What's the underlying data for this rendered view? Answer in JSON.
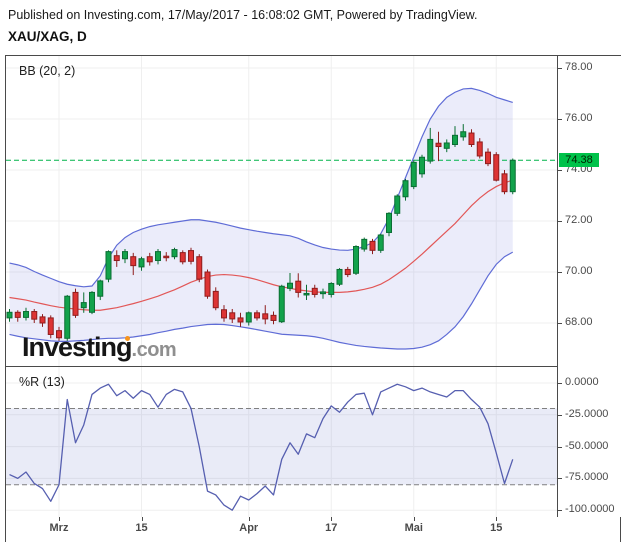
{
  "header": {
    "published": "Published on Investing.com, 17/May/2017 - 16:08:02 GMT, Powered by TradingView.",
    "symbol_line": "XAU/XAG, D"
  },
  "main_pane": {
    "indicator_label": "BB (20, 2)"
  },
  "wr_pane": {
    "indicator_label": "%R (13)"
  },
  "watermark": {
    "brand": "Investing",
    "tld": ".com"
  },
  "colors": {
    "up_fill": "#12a24b",
    "up_border": "#0a6e33",
    "down_fill": "#dd3434",
    "down_border": "#8e1d1d",
    "bb_line": "#5f6cd6",
    "bb_fill": "rgba(98,108,215,0.13)",
    "bb_mid": "#e25757",
    "wr_line": "#565fb0",
    "wr_band_fill": "rgba(101,110,200,0.14)",
    "wr_dash": "#808080",
    "last_line": "#00b44a",
    "badge_bg": "#00c24a",
    "grid": "#efefef"
  },
  "chart_data": {
    "type": "candlestick",
    "title": "XAU/XAG, D",
    "indicators": [
      "BB (20, 2)",
      "%R (13)"
    ],
    "last_price": "74.38",
    "last_price_value": 74.38,
    "price_axis_ticks": [
      {
        "label": "78.00",
        "price": 78
      },
      {
        "label": "76.00",
        "price": 76
      },
      {
        "label": "74.00",
        "price": 74
      },
      {
        "label": "72.00",
        "price": 72
      },
      {
        "label": "70.00",
        "price": 70
      },
      {
        "label": "68.00",
        "price": 68
      }
    ],
    "wr_axis_ticks": [
      {
        "label": "0.0000",
        "value": 0
      },
      {
        "label": "-25.0000",
        "value": -25
      },
      {
        "label": "-50.0000",
        "value": -50
      },
      {
        "label": "-75.0000",
        "value": -75
      },
      {
        "label": "-100.0000",
        "value": -100
      }
    ],
    "time_ticks": [
      {
        "label": "Mrz",
        "i": 6
      },
      {
        "label": "15",
        "i": 16
      },
      {
        "label": "Apr",
        "i": 29
      },
      {
        "label": "17",
        "i": 39
      },
      {
        "label": "Mai",
        "i": 49
      },
      {
        "label": "15",
        "i": 59
      }
    ],
    "wr_band_levels": [
      -20,
      -80
    ],
    "candles": [
      [
        68.2,
        68.55,
        68.05,
        68.42
      ],
      [
        68.42,
        68.5,
        68.05,
        68.22
      ],
      [
        68.22,
        68.6,
        68.1,
        68.45
      ],
      [
        68.45,
        68.55,
        68.0,
        68.15
      ],
      [
        68.24,
        68.35,
        67.85,
        68.0
      ],
      [
        68.2,
        68.3,
        67.4,
        67.55
      ],
      [
        67.7,
        67.85,
        67.3,
        67.42
      ],
      [
        67.4,
        69.1,
        67.3,
        69.05
      ],
      [
        69.2,
        69.35,
        68.2,
        68.3
      ],
      [
        68.6,
        69.2,
        68.4,
        68.8
      ],
      [
        68.42,
        69.25,
        68.35,
        69.2
      ],
      [
        69.05,
        69.7,
        68.9,
        69.65
      ],
      [
        69.72,
        70.85,
        69.6,
        70.8
      ],
      [
        70.64,
        70.85,
        70.2,
        70.45
      ],
      [
        70.52,
        70.9,
        70.35,
        70.8
      ],
      [
        70.6,
        70.75,
        69.88,
        70.25
      ],
      [
        70.2,
        70.6,
        70.05,
        70.52
      ],
      [
        70.6,
        70.75,
        70.25,
        70.4
      ],
      [
        70.45,
        70.9,
        70.3,
        70.8
      ],
      [
        70.62,
        70.78,
        70.42,
        70.56
      ],
      [
        70.6,
        70.95,
        70.5,
        70.88
      ],
      [
        70.76,
        70.85,
        70.3,
        70.4
      ],
      [
        70.84,
        70.95,
        70.3,
        70.42
      ],
      [
        70.6,
        70.7,
        69.6,
        69.72
      ],
      [
        70.0,
        70.1,
        68.95,
        69.05
      ],
      [
        69.24,
        69.4,
        68.5,
        68.6
      ],
      [
        68.52,
        68.7,
        68.05,
        68.2
      ],
      [
        68.4,
        68.55,
        68.0,
        68.16
      ],
      [
        68.2,
        68.4,
        67.85,
        68.04
      ],
      [
        68.04,
        68.45,
        67.9,
        68.4
      ],
      [
        68.4,
        68.5,
        68.1,
        68.2
      ],
      [
        68.36,
        68.7,
        67.95,
        68.16
      ],
      [
        68.3,
        68.45,
        67.95,
        68.1
      ],
      [
        68.05,
        69.5,
        68.0,
        69.44
      ],
      [
        69.36,
        69.96,
        69.25,
        69.56
      ],
      [
        69.64,
        69.95,
        69.0,
        69.2
      ],
      [
        69.1,
        69.5,
        68.9,
        69.16
      ],
      [
        69.36,
        69.5,
        69.0,
        69.12
      ],
      [
        69.15,
        69.35,
        68.95,
        69.22
      ],
      [
        69.12,
        69.6,
        69.0,
        69.55
      ],
      [
        69.52,
        70.15,
        69.45,
        70.1
      ],
      [
        70.1,
        70.2,
        69.8,
        69.9
      ],
      [
        69.95,
        71.05,
        69.88,
        71.0
      ],
      [
        70.9,
        71.35,
        70.8,
        71.28
      ],
      [
        71.2,
        71.3,
        70.7,
        70.85
      ],
      [
        70.85,
        71.5,
        70.75,
        71.45
      ],
      [
        71.55,
        72.35,
        71.4,
        72.3
      ],
      [
        72.3,
        73.05,
        72.2,
        72.98
      ],
      [
        72.95,
        73.65,
        72.8,
        73.58
      ],
      [
        73.35,
        74.4,
        73.25,
        74.3
      ],
      [
        73.85,
        74.6,
        73.7,
        74.5
      ],
      [
        74.35,
        75.65,
        74.25,
        75.2
      ],
      [
        75.05,
        75.5,
        74.35,
        74.92
      ],
      [
        74.85,
        75.2,
        74.7,
        75.06
      ],
      [
        75.0,
        75.72,
        74.9,
        75.36
      ],
      [
        75.3,
        75.8,
        75.15,
        75.5
      ],
      [
        75.45,
        75.6,
        74.9,
        75.0
      ],
      [
        75.1,
        75.25,
        74.45,
        74.55
      ],
      [
        74.7,
        74.85,
        74.15,
        74.25
      ],
      [
        74.6,
        74.7,
        73.55,
        73.6
      ],
      [
        73.85,
        74.0,
        73.05,
        73.15
      ],
      [
        73.15,
        74.45,
        73.05,
        74.38
      ]
    ],
    "bb_upper": [
      70.35,
      70.28,
      70.18,
      70.02,
      69.88,
      69.75,
      69.62,
      69.52,
      69.46,
      69.42,
      69.45,
      69.85,
      70.55,
      71.05,
      71.35,
      71.55,
      71.68,
      71.78,
      71.85,
      71.9,
      71.95,
      72.0,
      72.05,
      72.05,
      72.0,
      71.95,
      71.88,
      71.8,
      71.72,
      71.66,
      71.6,
      71.55,
      71.5,
      71.46,
      71.42,
      71.32,
      71.18,
      71.06,
      70.96,
      70.9,
      70.86,
      70.85,
      70.9,
      71.0,
      71.15,
      71.5,
      72.1,
      72.9,
      73.7,
      74.5,
      75.3,
      76.0,
      76.5,
      76.85,
      77.05,
      77.18,
      77.2,
      77.12,
      77.0,
      76.85,
      76.75,
      76.65
    ],
    "bb_mid": [
      69.0,
      68.95,
      68.9,
      68.82,
      68.75,
      68.68,
      68.62,
      68.58,
      68.55,
      68.52,
      68.5,
      68.5,
      68.55,
      68.6,
      68.68,
      68.76,
      68.85,
      68.95,
      69.05,
      69.18,
      69.3,
      69.45,
      69.6,
      69.72,
      69.82,
      69.88,
      69.9,
      69.88,
      69.84,
      69.78,
      69.7,
      69.6,
      69.5,
      69.42,
      69.36,
      69.3,
      69.26,
      69.22,
      69.2,
      69.2,
      69.2,
      69.22,
      69.26,
      69.32,
      69.4,
      69.52,
      69.7,
      69.92,
      70.15,
      70.42,
      70.7,
      71.0,
      71.3,
      71.6,
      71.9,
      72.25,
      72.6,
      72.9,
      73.15,
      73.35,
      73.5,
      73.6
    ],
    "bb_lower": [
      67.55,
      67.48,
      67.42,
      67.38,
      67.34,
      67.3,
      67.28,
      67.28,
      67.3,
      67.32,
      67.35,
      67.38,
      67.4,
      67.4,
      67.42,
      67.45,
      67.5,
      67.55,
      67.62,
      67.68,
      67.75,
      67.8,
      67.86,
      67.9,
      67.94,
      67.95,
      67.94,
      67.9,
      67.85,
      67.8,
      67.74,
      67.68,
      67.62,
      67.56,
      67.54,
      67.52,
      67.5,
      67.46,
      67.4,
      67.32,
      67.24,
      67.18,
      67.12,
      67.08,
      67.05,
      67.02,
      67.0,
      66.98,
      66.98,
      67.0,
      67.05,
      67.15,
      67.3,
      67.55,
      67.85,
      68.25,
      68.75,
      69.3,
      69.85,
      70.3,
      70.6,
      70.78
    ],
    "wr": [
      -72,
      -75,
      -70,
      -79,
      -83,
      -93,
      -80,
      -13,
      -47,
      -33,
      -9,
      -4,
      -1,
      -10,
      -6,
      -12,
      -6,
      -9,
      -19,
      -9,
      -5,
      -7,
      -20,
      -50,
      -85,
      -88,
      -96,
      -100,
      -89,
      -92,
      -87,
      -81,
      -88,
      -60,
      -47,
      -56,
      -40,
      -43,
      -28,
      -18,
      -23,
      -15,
      -9,
      -8,
      -25,
      -7,
      -4,
      -1,
      -3,
      -6,
      -4,
      -7,
      -9,
      -11,
      -6,
      -6,
      -13,
      -19,
      -32,
      -55,
      -79,
      -60
    ]
  }
}
